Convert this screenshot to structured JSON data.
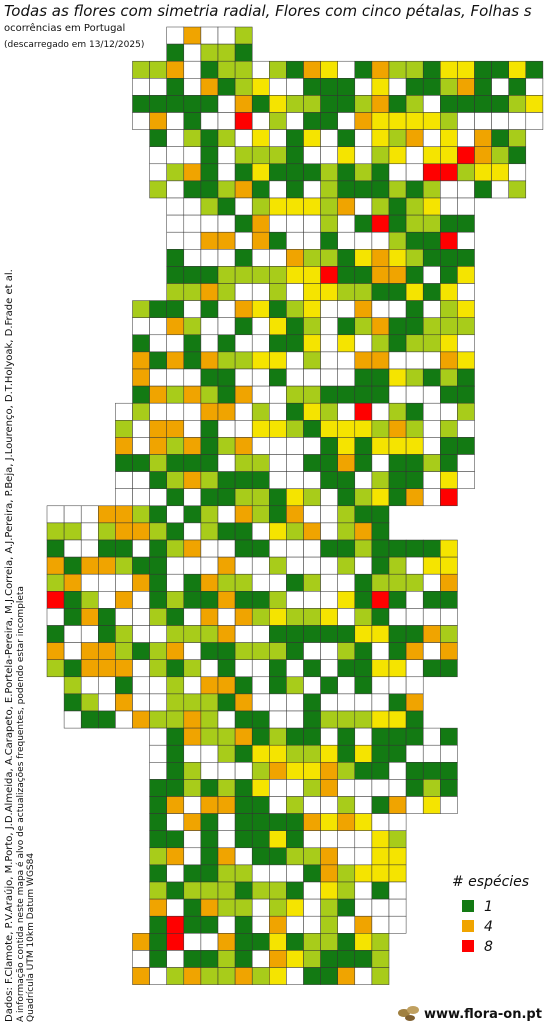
{
  "header": {
    "title": "Todas as flores com simetria radial, Flores com cinco pétalas, Folhas s",
    "subtitle": "ocorrências em Portugal",
    "date": "(descarregado em 13/12/2025)"
  },
  "side": {
    "credits": "Dados: F.Clamote, P.V.Araújo, M.Porto, J.D.Almeida, A.Carapeto, E.Portela-Pereira, M.J.Correia, A.J.Pereira, P.Beja, J.Lourenço, D.T.Holyoak, D.Frade et al.",
    "note": "A informação contida neste mapa é alvo de actualizações frequentes, podendo estar incompleta",
    "grid": "Quadrícula UTM 10km Datum WGS84"
  },
  "legend": {
    "title": "# espécies",
    "items": [
      {
        "label": "1",
        "color": "#137a13"
      },
      {
        "label": "4",
        "color": "#f0a400"
      },
      {
        "label": "8",
        "color": "#ff0000"
      }
    ]
  },
  "footer": {
    "site": "www.flora-on.pt"
  }
}
